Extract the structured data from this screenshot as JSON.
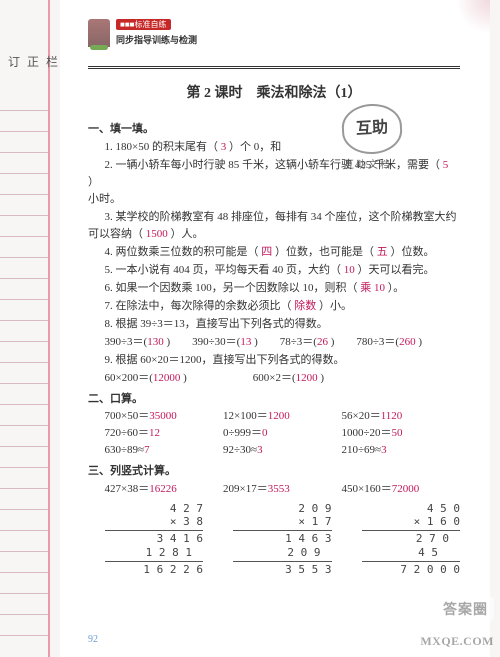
{
  "margin_label": "订 正 栏",
  "header": {
    "badge": "■■■标准自练",
    "subtitle": "同步指导训练与检测"
  },
  "title": "第 2 课时　乘法和除法（1）",
  "stamp": {
    "main": "互助",
    "sub": "互助文档",
    "tiny": ""
  },
  "sections": {
    "s1": {
      "heading": "一、填一填。",
      "q1a": "1. 180×50 的积末尾有（",
      "q1ans": "3",
      "q1b": "）个 0，和",
      "q1c": "",
      "q2a": "2. 一辆小轿车每小时行驶 85 千米，这辆小轿车行驶 425 千米，需要（",
      "q2ans": "5",
      "q2b": "）",
      "q2c": "小时。",
      "q3a": "3. 某学校的阶梯教室有 48 排座位，每排有 34 个座位，这个阶梯教室大约",
      "q3b": "可以容纳（",
      "q3ans": "1500",
      "q3c": "）人。",
      "q4a": "4. 两位数乘三位数的积可能是（",
      "q4ans1": "四",
      "q4b": "）位数，也可能是（",
      "q4ans2": "五",
      "q4c": "）位数。",
      "q5a": "5. 一本小说有 404 页，平均每天看 40 页，大约（",
      "q5ans": "10",
      "q5b": "）天可以看完。",
      "q6a": "6. 如果一个因数乘 100，另一个因数除以 10，则积（",
      "q6ans": "乘 10",
      "q6b": "）。",
      "q7a": "7. 在除法中，每次除得的余数必须比（",
      "q7ans": "除数",
      "q7b": "）小。",
      "q8a": "8. 根据 39÷3＝13，直接写出下列各式的得数。",
      "q8r": {
        "a1": "390÷3＝(",
        "v1": "130",
        "a2": ")　　390÷30＝(",
        "v2": "13",
        "a3": ")　　78÷3＝(",
        "v3": "26",
        "a4": ")　　780÷3＝(",
        "v4": "260",
        "a5": ")"
      },
      "q9a": "9. 根据 60×20＝1200，直接写出下列各式的得数。",
      "q9r": {
        "a1": "60×200＝(",
        "v1": "12000",
        "a2": ")　　　　　　600×2＝(",
        "v2": "1200",
        "a3": ")"
      }
    },
    "s2": {
      "heading": "二、口算。",
      "rows": [
        {
          "c1a": "700×50＝",
          "c1v": "35000",
          "c2a": "12×100＝",
          "c2v": "1200",
          "c3a": "56×20＝",
          "c3v": "1120"
        },
        {
          "c1a": "720÷60＝",
          "c1v": "12",
          "c2a": "0÷999＝",
          "c2v": "0",
          "c3a": "1000÷20＝",
          "c3v": "50"
        },
        {
          "c1a": "630÷89≈",
          "c1v": "7",
          "c2a": "92÷30≈",
          "c2v": "3",
          "c3a": "210÷69≈",
          "c3v": "3"
        }
      ]
    },
    "s3": {
      "heading": "三、列竖式计算。",
      "cols": [
        {
          "expr": "427×38＝",
          "ans": "16226",
          "lines": [
            "4 2 7",
            "×     3 8",
            "3 4 1 6",
            "1 2 8 1　",
            "1 6 2 2 6"
          ]
        },
        {
          "expr": "209×17＝",
          "ans": "3553",
          "lines": [
            "2 0 9",
            "×     1 7",
            "1 4 6 3",
            "2 0 9　",
            "3 5 5 3"
          ]
        },
        {
          "expr": "450×160＝",
          "ans": "72000",
          "lines": [
            "4 5 0",
            "×   1 6 0",
            "2 7 0　",
            "4 5　　",
            "7 2 0 0 0"
          ]
        }
      ]
    }
  },
  "page_number": "92",
  "watermark1": "答案圈",
  "watermark2": "MXQE.COM",
  "colors": {
    "answer": "#c2185b",
    "margin_line": "#e89aa8"
  }
}
